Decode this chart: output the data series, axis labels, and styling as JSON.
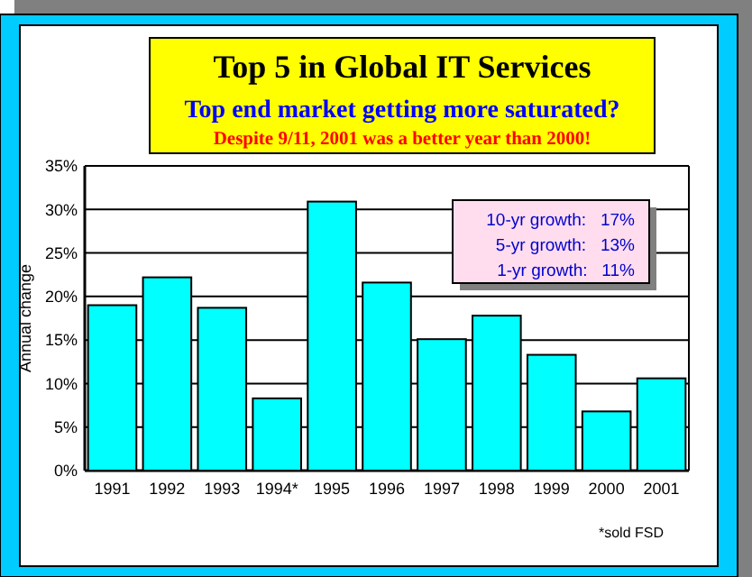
{
  "chart_data": {
    "type": "bar",
    "title": "Top 5 in Global IT Services",
    "subtitle": "Top end market getting more saturated?",
    "ylabel": "Annual change",
    "categories": [
      "1991",
      "1992",
      "1993",
      "1994*",
      "1995",
      "1996",
      "1997",
      "1998",
      "1999",
      "2000",
      "2001"
    ],
    "values": [
      19.0,
      22.2,
      18.7,
      8.3,
      30.9,
      21.6,
      15.1,
      17.8,
      13.3,
      6.8,
      10.6
    ],
    "color": "#00ffff",
    "ylim": [
      0,
      35
    ],
    "yticks": [
      {
        "value": 0,
        "label": "0%"
      },
      {
        "value": 5,
        "label": "5%"
      },
      {
        "value": 10,
        "label": "10%"
      },
      {
        "value": 15,
        "label": "15%"
      },
      {
        "value": 20,
        "label": "20%"
      },
      {
        "value": 25,
        "label": "25%"
      },
      {
        "value": 30,
        "label": "30%"
      },
      {
        "value": 35,
        "label": "35%"
      }
    ],
    "grid": "y",
    "annotations": [
      "Despite 9/11, 2001 was a better year than 2000!",
      "10-yr growth:   17%",
      "5-yr growth:   13%",
      "1-yr growth:   11%",
      "*sold FSD"
    ]
  }
}
